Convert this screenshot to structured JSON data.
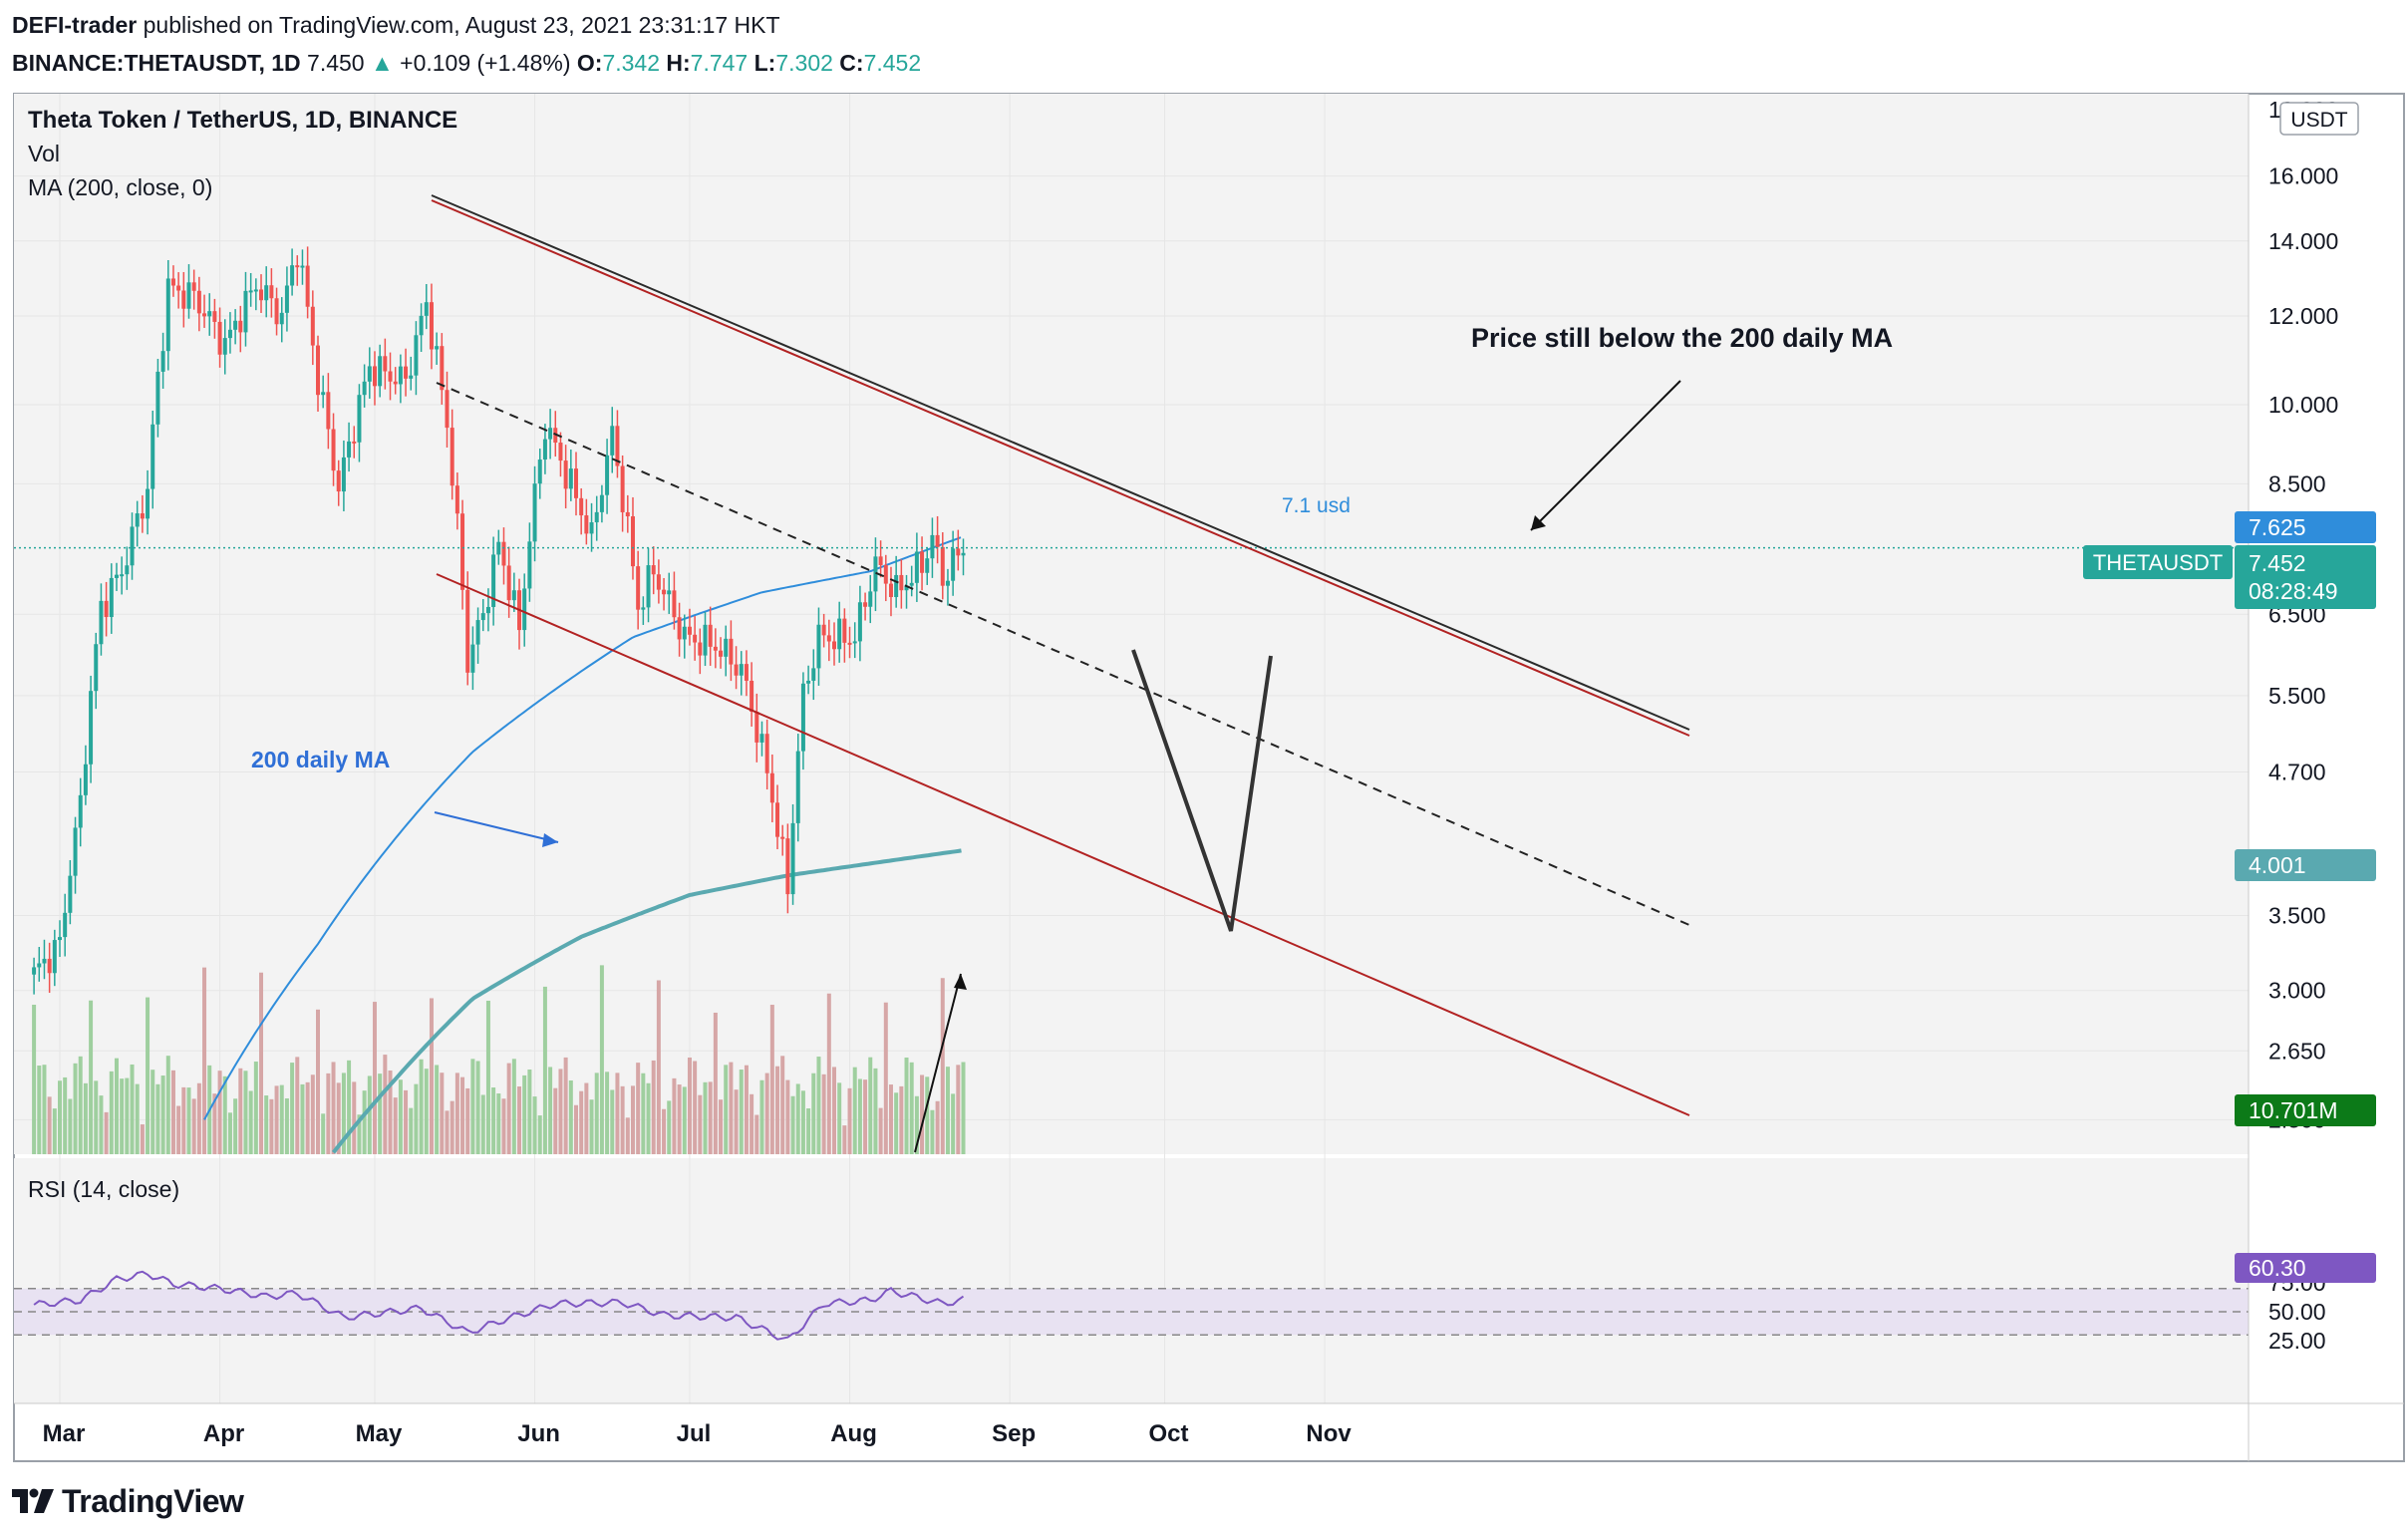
{
  "header": {
    "author": "DEFI-trader",
    "published": "published on TradingView.com, August 23, 2021 23:31:17 HKT",
    "symbol": "BINANCE:THETAUSDT, 1D",
    "last": "7.450",
    "arrow": "▲",
    "change": "+0.109 (+1.48%)",
    "o_label": "O:",
    "o": "7.342",
    "h_label": "H:",
    "h": "7.747",
    "l_label": "L:",
    "l": "7.302",
    "c_label": "C:",
    "c": "7.452"
  },
  "legend": {
    "title": "Theta Token / TetherUS, 1D, BINANCE",
    "vol": "Vol",
    "ma": "MA (200, close, 0)",
    "rsi": "RSI (14, close)"
  },
  "annotations": {
    "price_note": "Price still below the 200 daily MA",
    "ma_label": "200 daily MA",
    "usd_label": "7.1 usd"
  },
  "badges": {
    "currency": "USDT",
    "ma_value": "7.625",
    "symbol": "THETAUSDT",
    "price": "7.452",
    "countdown": "08:28:49",
    "ma200": "4.001",
    "volume": "10.701M",
    "rsi": "60.30"
  },
  "brand": {
    "name": "TradingView"
  },
  "colors": {
    "up": "#26a69a",
    "down": "#ef5350",
    "vol_up": "#9fcf9f",
    "vol_down": "#d6a6a6",
    "ma200": "#5aa9b0",
    "ma_blue": "#2f8ddb",
    "channel": "#b22222",
    "rsi_line": "#7e57c2",
    "rsi_band": "#e8e2f2"
  },
  "chart_data": {
    "type": "candlestick",
    "title": "Theta Token / TetherUS, 1D, BINANCE",
    "price_axis": {
      "scale": "log",
      "ticks": [
        "16.000",
        "14.000",
        "12.000",
        "10.000",
        "8.500",
        "6.500",
        "5.500",
        "4.700",
        "3.500",
        "3.000",
        "2.650",
        "2.300"
      ],
      "top_tick": "19.000"
    },
    "time_axis": {
      "ticks": [
        "Mar",
        "Apr",
        "May",
        "Jun",
        "Jul",
        "Aug",
        "Sep",
        "Oct",
        "Nov"
      ]
    },
    "rsi_axis": {
      "ticks": [
        "75.00",
        "50.00",
        "25.00"
      ],
      "band": [
        30,
        70
      ]
    },
    "price_anchors": [
      {
        "date": "2021-02-24",
        "close": 3.1
      },
      {
        "date": "2021-03-01",
        "close": 3.3
      },
      {
        "date": "2021-03-05",
        "close": 4.4
      },
      {
        "date": "2021-03-09",
        "close": 6.6
      },
      {
        "date": "2021-03-13",
        "close": 7.1
      },
      {
        "date": "2021-03-18",
        "close": 8.4
      },
      {
        "date": "2021-03-22",
        "close": 12.7
      },
      {
        "date": "2021-03-27",
        "close": 12.5
      },
      {
        "date": "2021-04-02",
        "close": 11.3
      },
      {
        "date": "2021-04-08",
        "close": 12.8
      },
      {
        "date": "2021-04-13",
        "close": 12.0
      },
      {
        "date": "2021-04-16",
        "close": 13.8
      },
      {
        "date": "2021-04-20",
        "close": 10.5
      },
      {
        "date": "2021-04-24",
        "close": 8.4
      },
      {
        "date": "2021-04-30",
        "close": 10.8
      },
      {
        "date": "2021-05-07",
        "close": 10.5
      },
      {
        "date": "2021-05-11",
        "close": 12.3
      },
      {
        "date": "2021-05-15",
        "close": 9.6
      },
      {
        "date": "2021-05-19",
        "close": 5.9
      },
      {
        "date": "2021-05-22",
        "close": 6.5
      },
      {
        "date": "2021-05-25",
        "close": 7.5
      },
      {
        "date": "2021-05-29",
        "close": 6.3
      },
      {
        "date": "2021-06-03",
        "close": 9.6
      },
      {
        "date": "2021-06-07",
        "close": 8.7
      },
      {
        "date": "2021-06-12",
        "close": 7.6
      },
      {
        "date": "2021-06-16",
        "close": 9.4
      },
      {
        "date": "2021-06-21",
        "close": 6.6
      },
      {
        "date": "2021-06-24",
        "close": 7.1
      },
      {
        "date": "2021-06-30",
        "close": 6.2
      },
      {
        "date": "2021-07-06",
        "close": 6.1
      },
      {
        "date": "2021-07-11",
        "close": 5.8
      },
      {
        "date": "2021-07-16",
        "close": 4.7
      },
      {
        "date": "2021-07-20",
        "close": 3.7
      },
      {
        "date": "2021-07-23",
        "close": 5.5
      },
      {
        "date": "2021-07-26",
        "close": 6.2
      },
      {
        "date": "2021-08-02",
        "close": 6.2
      },
      {
        "date": "2021-08-06",
        "close": 7.2
      },
      {
        "date": "2021-08-10",
        "close": 6.8
      },
      {
        "date": "2021-08-15",
        "close": 7.2
      },
      {
        "date": "2021-08-17",
        "close": 7.6
      },
      {
        "date": "2021-08-19",
        "close": 7.0
      },
      {
        "date": "2021-08-23",
        "close": 7.452
      }
    ],
    "ma200_anchors": [
      {
        "date": "2021-04-23",
        "value": 2.15
      },
      {
        "date": "2021-05-05",
        "value": 2.5
      },
      {
        "date": "2021-05-20",
        "value": 2.95
      },
      {
        "date": "2021-06-10",
        "value": 3.35
      },
      {
        "date": "2021-07-01",
        "value": 3.65
      },
      {
        "date": "2021-07-20",
        "value": 3.8
      },
      {
        "date": "2021-08-23",
        "value": 4.001
      }
    ],
    "ma_blue_anchors": [
      {
        "date": "2021-03-29",
        "value": 2.3
      },
      {
        "date": "2021-04-20",
        "value": 3.3
      },
      {
        "date": "2021-05-20",
        "value": 4.9
      },
      {
        "date": "2021-06-20",
        "value": 6.2
      },
      {
        "date": "2021-07-15",
        "value": 6.8
      },
      {
        "date": "2021-08-05",
        "value": 7.1
      },
      {
        "date": "2021-08-23",
        "value": 7.625
      }
    ],
    "rsi_anchors": [
      {
        "date": "2021-02-24",
        "value": 56
      },
      {
        "date": "2021-03-05",
        "value": 60
      },
      {
        "date": "2021-03-12",
        "value": 78
      },
      {
        "date": "2021-03-18",
        "value": 83
      },
      {
        "date": "2021-03-23",
        "value": 74
      },
      {
        "date": "2021-04-01",
        "value": 70
      },
      {
        "date": "2021-04-10",
        "value": 63
      },
      {
        "date": "2021-04-16",
        "value": 66
      },
      {
        "date": "2021-04-25",
        "value": 45
      },
      {
        "date": "2021-05-10",
        "value": 53
      },
      {
        "date": "2021-05-19",
        "value": 32
      },
      {
        "date": "2021-05-26",
        "value": 43
      },
      {
        "date": "2021-06-05",
        "value": 57
      },
      {
        "date": "2021-06-18",
        "value": 58
      },
      {
        "date": "2021-06-26",
        "value": 47
      },
      {
        "date": "2021-07-10",
        "value": 45
      },
      {
        "date": "2021-07-20",
        "value": 25
      },
      {
        "date": "2021-07-27",
        "value": 57
      },
      {
        "date": "2021-08-05",
        "value": 60
      },
      {
        "date": "2021-08-09",
        "value": 68
      },
      {
        "date": "2021-08-19",
        "value": 57
      },
      {
        "date": "2021-08-23",
        "value": 60.3
      }
    ]
  }
}
